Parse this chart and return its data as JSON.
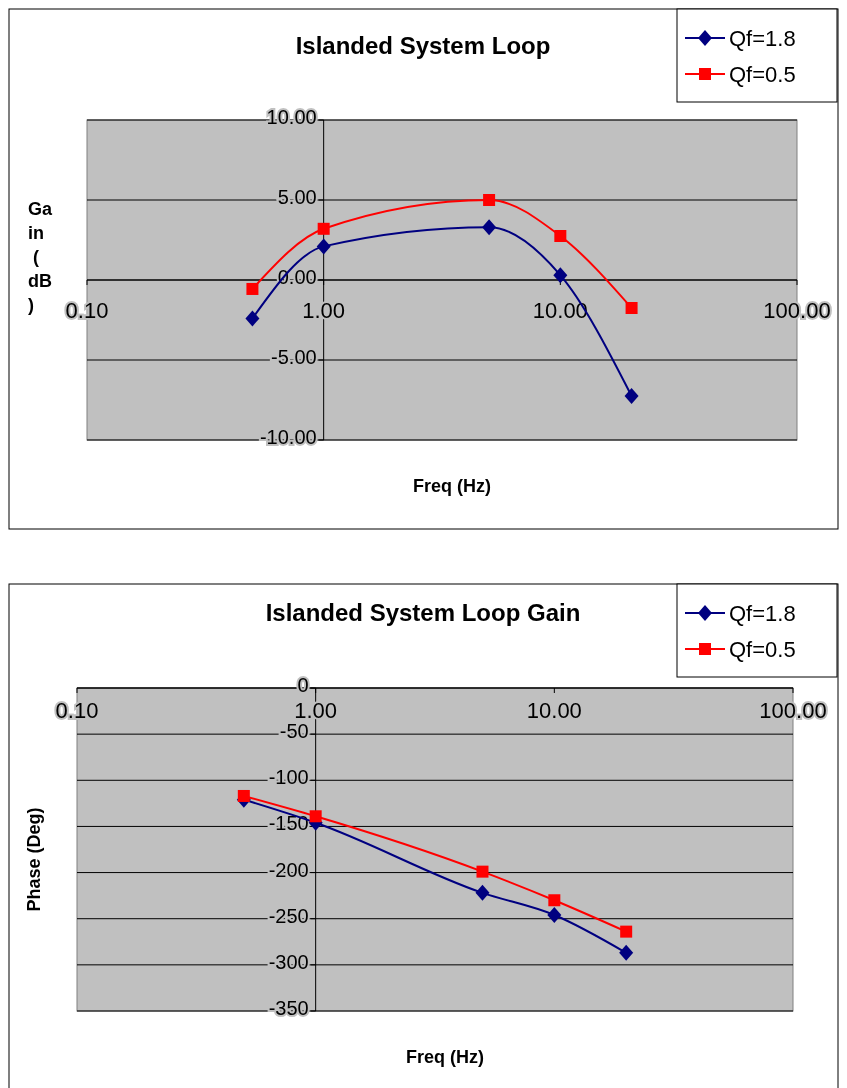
{
  "chart_data": [
    {
      "type": "line",
      "title": "Islanded System Loop",
      "xlabel": "Freq (Hz)",
      "ylabel": "Gain (dB)",
      "log": "x",
      "x": [
        0.5,
        1,
        5,
        10,
        20
      ],
      "series": [
        {
          "name": "Qf=1.8",
          "color": "#000080",
          "marker": "diamond",
          "values": [
            -2.4,
            2.1,
            3.3,
            0.3,
            -7.25
          ]
        },
        {
          "name": "Qf=0.5",
          "color": "#ff0000",
          "marker": "square",
          "values": [
            -0.56,
            3.2,
            5.0,
            2.75,
            -1.75
          ]
        }
      ],
      "xlim": [
        0.1,
        100
      ],
      "xticks": [
        {
          "value": 0.1,
          "label": "0.10"
        },
        {
          "value": 1,
          "label": "1.00"
        },
        {
          "value": 10,
          "label": "10.00"
        },
        {
          "value": 100,
          "label": "100.00"
        }
      ],
      "ylim": [
        -10,
        10
      ],
      "yticks": [
        {
          "value": -10,
          "label": "-10.00"
        },
        {
          "value": -5,
          "label": "-5.00"
        },
        {
          "value": 0,
          "label": "0.00"
        },
        {
          "value": 5,
          "label": "5.00"
        },
        {
          "value": 10,
          "label": "10.00"
        }
      ],
      "grid": "y",
      "legend": "top right"
    },
    {
      "type": "line",
      "title": "Islanded System Loop Gain",
      "xlabel": "Freq (Hz)",
      "ylabel": "Phase (Deg)",
      "log": "x",
      "x": [
        0.5,
        1,
        5,
        10,
        20
      ],
      "series": [
        {
          "name": "Qf=1.8",
          "color": "#000080",
          "marker": "diamond",
          "values": [
            -121,
            -146,
            -222,
            -246,
            -287
          ]
        },
        {
          "name": "Qf=0.5",
          "color": "#ff0000",
          "marker": "square",
          "values": [
            -117,
            -139,
            -199,
            -230,
            -264
          ]
        }
      ],
      "xlim": [
        0.1,
        100
      ],
      "xticks": [
        {
          "value": 0.1,
          "label": "0.10"
        },
        {
          "value": 1,
          "label": "1.00"
        },
        {
          "value": 10,
          "label": "10.00"
        },
        {
          "value": 100,
          "label": "100.00"
        }
      ],
      "ylim": [
        -350,
        0
      ],
      "yticks": [
        -350,
        -300,
        -250,
        -200,
        -150,
        -100,
        -50,
        0
      ],
      "grid": "y",
      "legend": "top right"
    }
  ]
}
